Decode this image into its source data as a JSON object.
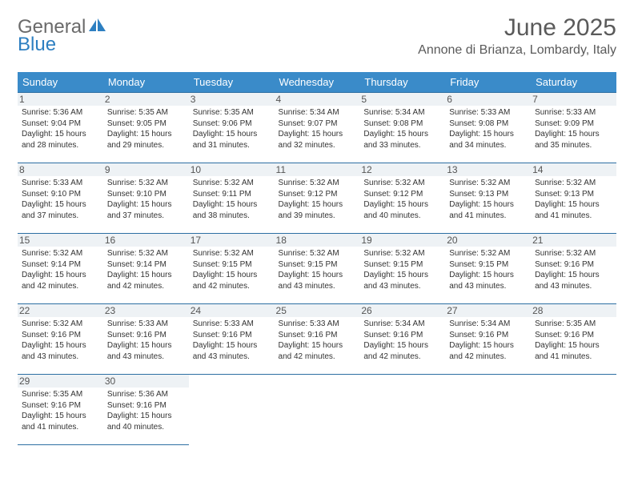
{
  "logo": {
    "part1": "General",
    "part2": "Blue"
  },
  "title": "June 2025",
  "location": "Annone di Brianza, Lombardy, Italy",
  "colors": {
    "header_bg": "#3a8bc9",
    "header_text": "#ffffff",
    "border": "#2d6fa3",
    "daynum_bg": "#eef2f5",
    "logo_gray": "#6a6a6a",
    "logo_blue": "#2d7fc1"
  },
  "weekdays": [
    "Sunday",
    "Monday",
    "Tuesday",
    "Wednesday",
    "Thursday",
    "Friday",
    "Saturday"
  ],
  "weeks": [
    [
      {
        "day": "1",
        "sunrise": "5:36 AM",
        "sunset": "9:04 PM",
        "daylight": "15 hours and 28 minutes."
      },
      {
        "day": "2",
        "sunrise": "5:35 AM",
        "sunset": "9:05 PM",
        "daylight": "15 hours and 29 minutes."
      },
      {
        "day": "3",
        "sunrise": "5:35 AM",
        "sunset": "9:06 PM",
        "daylight": "15 hours and 31 minutes."
      },
      {
        "day": "4",
        "sunrise": "5:34 AM",
        "sunset": "9:07 PM",
        "daylight": "15 hours and 32 minutes."
      },
      {
        "day": "5",
        "sunrise": "5:34 AM",
        "sunset": "9:08 PM",
        "daylight": "15 hours and 33 minutes."
      },
      {
        "day": "6",
        "sunrise": "5:33 AM",
        "sunset": "9:08 PM",
        "daylight": "15 hours and 34 minutes."
      },
      {
        "day": "7",
        "sunrise": "5:33 AM",
        "sunset": "9:09 PM",
        "daylight": "15 hours and 35 minutes."
      }
    ],
    [
      {
        "day": "8",
        "sunrise": "5:33 AM",
        "sunset": "9:10 PM",
        "daylight": "15 hours and 37 minutes."
      },
      {
        "day": "9",
        "sunrise": "5:32 AM",
        "sunset": "9:10 PM",
        "daylight": "15 hours and 37 minutes."
      },
      {
        "day": "10",
        "sunrise": "5:32 AM",
        "sunset": "9:11 PM",
        "daylight": "15 hours and 38 minutes."
      },
      {
        "day": "11",
        "sunrise": "5:32 AM",
        "sunset": "9:12 PM",
        "daylight": "15 hours and 39 minutes."
      },
      {
        "day": "12",
        "sunrise": "5:32 AM",
        "sunset": "9:12 PM",
        "daylight": "15 hours and 40 minutes."
      },
      {
        "day": "13",
        "sunrise": "5:32 AM",
        "sunset": "9:13 PM",
        "daylight": "15 hours and 41 minutes."
      },
      {
        "day": "14",
        "sunrise": "5:32 AM",
        "sunset": "9:13 PM",
        "daylight": "15 hours and 41 minutes."
      }
    ],
    [
      {
        "day": "15",
        "sunrise": "5:32 AM",
        "sunset": "9:14 PM",
        "daylight": "15 hours and 42 minutes."
      },
      {
        "day": "16",
        "sunrise": "5:32 AM",
        "sunset": "9:14 PM",
        "daylight": "15 hours and 42 minutes."
      },
      {
        "day": "17",
        "sunrise": "5:32 AM",
        "sunset": "9:15 PM",
        "daylight": "15 hours and 42 minutes."
      },
      {
        "day": "18",
        "sunrise": "5:32 AM",
        "sunset": "9:15 PM",
        "daylight": "15 hours and 43 minutes."
      },
      {
        "day": "19",
        "sunrise": "5:32 AM",
        "sunset": "9:15 PM",
        "daylight": "15 hours and 43 minutes."
      },
      {
        "day": "20",
        "sunrise": "5:32 AM",
        "sunset": "9:15 PM",
        "daylight": "15 hours and 43 minutes."
      },
      {
        "day": "21",
        "sunrise": "5:32 AM",
        "sunset": "9:16 PM",
        "daylight": "15 hours and 43 minutes."
      }
    ],
    [
      {
        "day": "22",
        "sunrise": "5:32 AM",
        "sunset": "9:16 PM",
        "daylight": "15 hours and 43 minutes."
      },
      {
        "day": "23",
        "sunrise": "5:33 AM",
        "sunset": "9:16 PM",
        "daylight": "15 hours and 43 minutes."
      },
      {
        "day": "24",
        "sunrise": "5:33 AM",
        "sunset": "9:16 PM",
        "daylight": "15 hours and 43 minutes."
      },
      {
        "day": "25",
        "sunrise": "5:33 AM",
        "sunset": "9:16 PM",
        "daylight": "15 hours and 42 minutes."
      },
      {
        "day": "26",
        "sunrise": "5:34 AM",
        "sunset": "9:16 PM",
        "daylight": "15 hours and 42 minutes."
      },
      {
        "day": "27",
        "sunrise": "5:34 AM",
        "sunset": "9:16 PM",
        "daylight": "15 hours and 42 minutes."
      },
      {
        "day": "28",
        "sunrise": "5:35 AM",
        "sunset": "9:16 PM",
        "daylight": "15 hours and 41 minutes."
      }
    ],
    [
      {
        "day": "29",
        "sunrise": "5:35 AM",
        "sunset": "9:16 PM",
        "daylight": "15 hours and 41 minutes."
      },
      {
        "day": "30",
        "sunrise": "5:36 AM",
        "sunset": "9:16 PM",
        "daylight": "15 hours and 40 minutes."
      },
      null,
      null,
      null,
      null,
      null
    ]
  ],
  "labels": {
    "sunrise_prefix": "Sunrise: ",
    "sunset_prefix": "Sunset: ",
    "daylight_prefix": "Daylight: "
  }
}
